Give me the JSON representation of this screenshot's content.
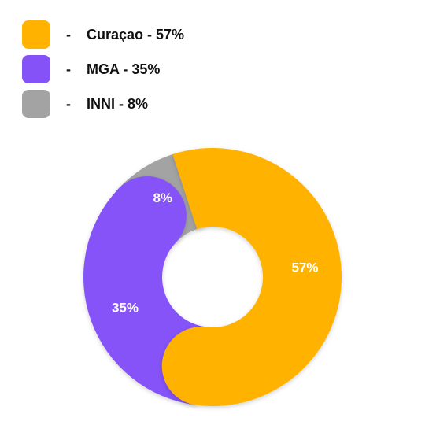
{
  "legend": [
    {
      "dash": "-",
      "label": "Curaçao - 57%",
      "color": "#FFB300"
    },
    {
      "dash": "-",
      "label": "MGA - 35%",
      "color": "#8552F8"
    },
    {
      "dash": "-",
      "label": "INNI - 8%",
      "color": "#A3A3A3"
    }
  ],
  "chart_data": {
    "type": "pie",
    "categories": [
      "Curaçao",
      "MGA",
      "INNI"
    ],
    "values": [
      57,
      35,
      8
    ],
    "data_labels": [
      "57%",
      "35%",
      "8%"
    ],
    "colors": [
      "#FFB300",
      "#8552F8",
      "#A3A3A3"
    ],
    "donut": true,
    "legend_position": "top-left"
  }
}
